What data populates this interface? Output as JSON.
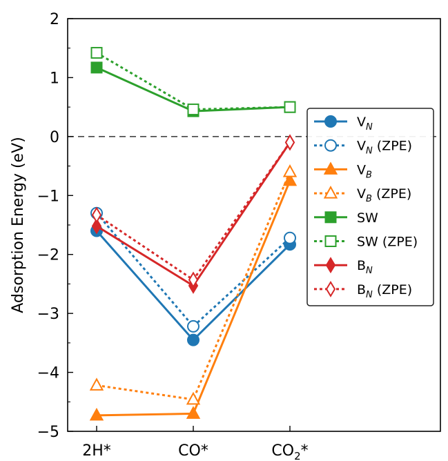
{
  "chart_data": {
    "type": "line",
    "title": "",
    "xlabel": "",
    "ylabel": "Adsorption Energy (eV)",
    "categories": [
      {
        "base": "2H*",
        "sub": ""
      },
      {
        "base": "CO",
        "sub": "",
        "suffix": "*"
      },
      {
        "base": "CO",
        "sub": "2",
        "suffix": "*"
      }
    ],
    "ylim": [
      -5,
      2
    ],
    "yticks": [
      2,
      1,
      0,
      -1,
      -2,
      -3,
      -4,
      -5
    ],
    "ytick_labels": [
      "2",
      "1",
      "0",
      "−1",
      "−2",
      "−3",
      "−4",
      "−5"
    ],
    "reference_line": {
      "y": 0,
      "style": "dashed",
      "color": "#333333"
    },
    "legend_position": "center-right",
    "series": [
      {
        "name": "V",
        "sub": "N",
        "suffix": "",
        "color": "#1f77b4",
        "marker": "circle",
        "filled": true,
        "dashed": false,
        "values": [
          -1.6,
          -3.45,
          -1.83
        ]
      },
      {
        "name": "V",
        "sub": "N",
        "suffix": " (ZPE)",
        "color": "#1f77b4",
        "marker": "circle",
        "filled": false,
        "dashed": true,
        "values": [
          -1.3,
          -3.22,
          -1.72
        ]
      },
      {
        "name": "V",
        "sub": "B",
        "suffix": "",
        "color": "#ff7f0e",
        "marker": "triangle",
        "filled": true,
        "dashed": false,
        "values": [
          -4.73,
          -4.7,
          -0.75
        ]
      },
      {
        "name": "V",
        "sub": "B",
        "suffix": " (ZPE)",
        "color": "#ff7f0e",
        "marker": "triangle",
        "filled": false,
        "dashed": true,
        "values": [
          -4.22,
          -4.46,
          -0.6
        ]
      },
      {
        "name": "SW",
        "sub": "",
        "suffix": "",
        "color": "#2ca02c",
        "marker": "square",
        "filled": true,
        "dashed": false,
        "values": [
          1.17,
          0.43,
          0.5
        ]
      },
      {
        "name": "SW",
        "sub": "",
        "suffix": " (ZPE)",
        "color": "#2ca02c",
        "marker": "square",
        "filled": false,
        "dashed": true,
        "values": [
          1.42,
          0.46,
          0.5
        ]
      },
      {
        "name": "B",
        "sub": "N",
        "suffix": "",
        "color": "#d62728",
        "marker": "diamond",
        "filled": true,
        "dashed": false,
        "values": [
          -1.52,
          -2.53,
          -0.1
        ]
      },
      {
        "name": "B",
        "sub": "N",
        "suffix": " (ZPE)",
        "color": "#d62728",
        "marker": "diamond",
        "filled": false,
        "dashed": true,
        "values": [
          -1.33,
          -2.43,
          -0.1
        ]
      }
    ]
  }
}
